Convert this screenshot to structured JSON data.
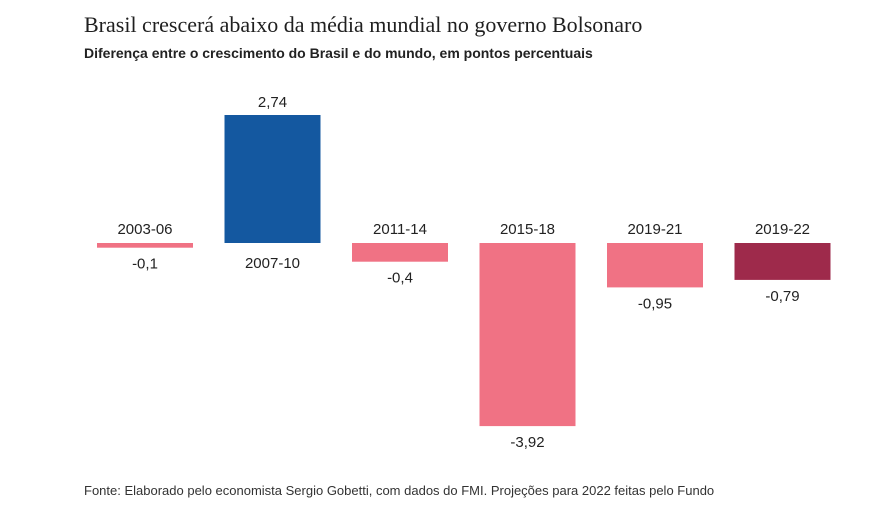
{
  "chart_data": {
    "type": "bar",
    "title": "Brasil crescerá abaixo da média mundial no governo Bolsonaro",
    "subtitle": "Diferença entre o crescimento do Brasil e do mundo, em pontos percentuais",
    "categories": [
      "2003-06",
      "2007-10",
      "2011-14",
      "2015-18",
      "2019-21",
      "2019-22"
    ],
    "values": [
      -0.1,
      2.74,
      -0.4,
      -3.92,
      -0.95,
      -0.79
    ],
    "value_labels": [
      "-0,1",
      "2,74",
      "-0,4",
      "-3,92",
      "-0,95",
      "-0,79"
    ],
    "colors": [
      "#f07284",
      "#1458a0",
      "#f07284",
      "#f07284",
      "#f07284",
      "#9e2a4b"
    ],
    "xlabel": "",
    "ylabel": "",
    "ylim": [
      -3.92,
      2.74
    ],
    "grid": false,
    "legend": "none"
  },
  "footer": {
    "source": "Fonte: Elaborado pelo economista Sergio Gobetti, com dados do FMI. Projeções para 2022 feitas pelo Fundo"
  }
}
